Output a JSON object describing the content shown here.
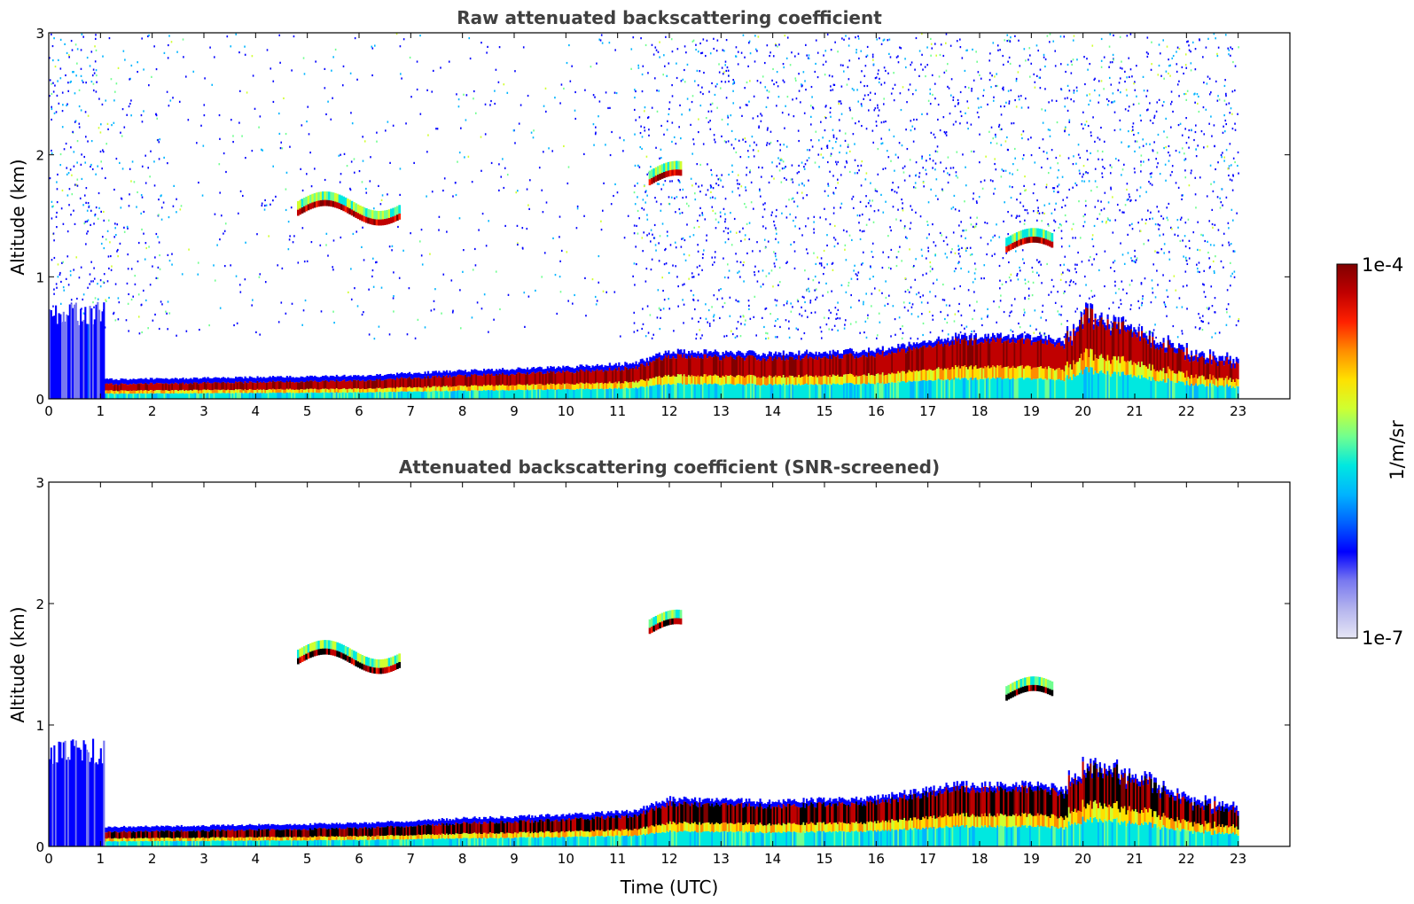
{
  "chart_data": [
    {
      "type": "heatmap",
      "title": "Raw attenuated backscattering coefficient",
      "xlabel": "",
      "ylabel": "Altitude (km)",
      "xlim": [
        0,
        24
      ],
      "ylim": [
        0,
        3
      ],
      "xticks": [
        "0",
        "1",
        "2",
        "3",
        "4",
        "5",
        "6",
        "7",
        "8",
        "9",
        "10",
        "11",
        "12",
        "13",
        "14",
        "15",
        "16",
        "17",
        "18",
        "19",
        "20",
        "21",
        "22",
        "23"
      ],
      "yticks": [
        "0",
        "1",
        "2",
        "3"
      ],
      "data_end_hour": 23,
      "surface_layer": {
        "x": [
          1.1,
          3,
          4.5,
          6,
          8,
          10,
          11.3,
          12,
          14,
          16,
          17.5,
          19,
          19.6,
          20,
          21,
          22,
          23
        ],
        "top_km": [
          0.12,
          0.13,
          0.14,
          0.15,
          0.19,
          0.22,
          0.25,
          0.35,
          0.33,
          0.36,
          0.47,
          0.47,
          0.44,
          0.65,
          0.55,
          0.35,
          0.28
        ]
      },
      "cloud_features": [
        {
          "x_start": 4.8,
          "x_end": 6.8,
          "altitude_km": 1.55
        },
        {
          "x_start": 11.6,
          "x_end": 12.2,
          "altitude_km": 1.8
        },
        {
          "x_start": 18.5,
          "x_end": 19.4,
          "altitude_km": 1.25
        }
      ]
    },
    {
      "type": "heatmap",
      "title": "Attenuated backscattering coefficient (SNR-screened)",
      "xlabel": "Time (UTC)",
      "ylabel": "Altitude (km)",
      "xlim": [
        0,
        24
      ],
      "ylim": [
        0,
        3
      ],
      "xticks": [
        "0",
        "1",
        "2",
        "3",
        "4",
        "5",
        "6",
        "7",
        "8",
        "9",
        "10",
        "11",
        "12",
        "13",
        "14",
        "15",
        "16",
        "17",
        "18",
        "19",
        "20",
        "21",
        "22",
        "23"
      ],
      "yticks": [
        "0",
        "1",
        "2",
        "3"
      ],
      "data_end_hour": 23
    }
  ],
  "colorbar": {
    "label": "1/m/sr",
    "max_label": "1e-4",
    "min_label": "1e-7",
    "colors": [
      "#e6e6f5",
      "#b5b5ee",
      "#7878f0",
      "#0000ff",
      "#0060ff",
      "#00b4ff",
      "#00e8e0",
      "#70ff90",
      "#d0ff30",
      "#ffe000",
      "#ff8c00",
      "#ff2000",
      "#c00000",
      "#800000"
    ]
  }
}
